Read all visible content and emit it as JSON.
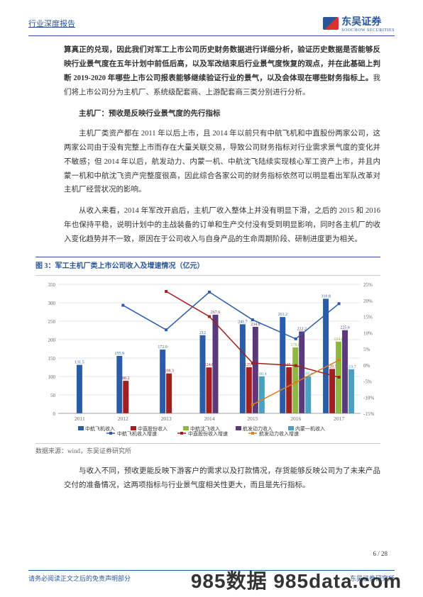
{
  "header": {
    "title": "行业深度报告",
    "logo_main": "东吴证券",
    "logo_sub": "SOOCHOW SECURITIES"
  },
  "paragraphs": {
    "p1": "算真正的兑现，因此我们对军工上市公司历史财务数据进行详细分析，验证历史数据是否能够反映行业景气度在五年计划中前低后高，以及军改结束后行业景气度恢复的观点，并在此基础上判断 2019-2020 年哪些上市公司报表能够继续验证行业的景气，以及会体现在哪些财务指标上。",
    "p1b": "我们将上市公司分为主机厂、系统级配套商、上游配套商三类分别进行分析。",
    "section1": "主机厂：预收是反映行业景气度的先行指标",
    "p2": "主机厂类资产都在 2011 年以后上市，且 2014 年以前只有中航飞机和中直股份两家公司，这两家公司由于没有完整上市而存在大量关联交易，导致公司财务指标对行业需求景气度的变化并不敏感；但 2014 年以后，航发动力、内蒙一机、中航沈飞陆续实现核心军工资产上市，并且内蒙一机和中航沈飞资产完整度很高，因此综合各家公司的财务指标依然可以明显看出军队改革对主机厂经营状况的影响。",
    "p3": "从收入来看，2014 年军改开启后，主机厂收入整体上并没有明显下滑，之后的 2015 和 2016 年也保持平稳，说明计划中的主战装备的订单和生产交付没有受到明显影响，同时各主机厂的收入变化趋势并不一致，原因在于公司收入与自身产品的生命周期阶段、研制进度更为相关。",
    "p4": "与收入不同，预收更能反映下游客户的需求以及打款情况，存货能够反映公司为了未来产品交付的准备情况，这两项指标与行业景气度相关性更大，而且是先行指标。"
  },
  "chart": {
    "title": "图 3：军工主机厂类上市公司收入及增速情况（亿元）",
    "source": "数据来源：wind，东吴证券研究所",
    "years": [
      "2011",
      "2012",
      "2013",
      "2014",
      "2015",
      "2016",
      "2017"
    ],
    "y1_max": 350,
    "y1_step": 50,
    "y2_max": 25,
    "y2_min": -15,
    "y2_step": 5,
    "colors": {
      "zhfj": "#2a5caa",
      "zzgf": "#a02020",
      "zhsf": "#8fb840",
      "hfdl": "#5a3a7a",
      "nmyj": "#4aa0c0",
      "grid": "#cccccc",
      "axis": "#888888",
      "bg": "#ffffff"
    },
    "series": {
      "zhfj": {
        "label": "中航飞机收入",
        "values": [
          131.5,
          155.9,
          172.9,
          212.0,
          241.7,
          261.2,
          310.8
        ]
      },
      "zzgf": {
        "label": "中直股份收入",
        "values": [
          null,
          88.2,
          108.3,
          124.6,
          125.4,
          125.2,
          120.5
        ]
      },
      "zhsf": {
        "label": "中航沈飞收入",
        "values": [
          null,
          null,
          null,
          null,
          null,
          178.8,
          194.6
        ]
      },
      "hfdl": {
        "label": "航发动力收入",
        "values": [
          null,
          null,
          null,
          267.6,
          234.8,
          222.2,
          225.6
        ]
      },
      "nmyj": {
        "label": "内蒙一机收入",
        "values": [
          null,
          null,
          null,
          null,
          100.4,
          100.6,
          119.7
        ]
      }
    },
    "lines": {
      "zhfj_g": {
        "label": "中航飞机收入增速",
        "color": "#2a5caa",
        "values": [
          null,
          18.5,
          10.9,
          22.6,
          14.0,
          8.1,
          19.0
        ]
      },
      "zzgf_g": {
        "label": "中直股份收入增速",
        "color": "#a02020",
        "values": [
          null,
          null,
          22.8,
          15.0,
          0.6,
          -0.2,
          -3.8
        ]
      },
      "hfdl_g": {
        "label": "航发动力收入增速",
        "color": "#d68020",
        "values": [
          null,
          null,
          null,
          null,
          -12.3,
          -5.4,
          1.5
        ]
      }
    },
    "legend_bars": [
      "中航飞机收入",
      "中直股份收入",
      "中航沈飞收入",
      "航发动力收入",
      "内蒙一机收入"
    ],
    "legend_lines": [
      "中航飞机收入增速",
      "中直股份收入增速",
      "航发动力收入增速"
    ]
  },
  "footer": {
    "page": "6 / 28",
    "left": "请务必阅读正文之后的免责声明部分",
    "right": "东吴证券研究所"
  },
  "watermark": "985数据 985data.com"
}
